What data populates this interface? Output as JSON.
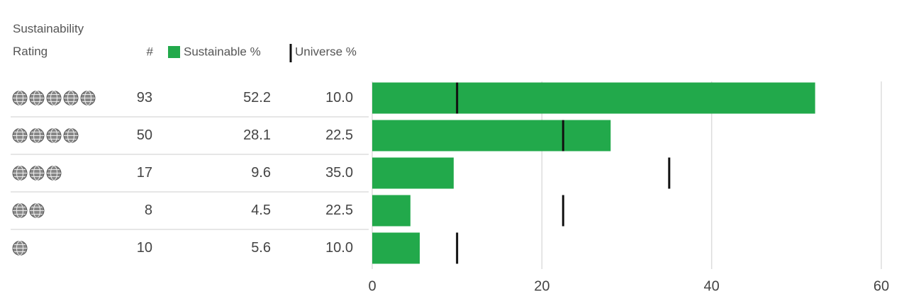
{
  "chart_data": {
    "type": "bar",
    "rating_header": "Sustainability Rating",
    "count_header": "#",
    "ratings": [
      5,
      4,
      3,
      2,
      1
    ],
    "counts": [
      93,
      50,
      17,
      8,
      10
    ],
    "series": [
      {
        "name": "Sustainable %",
        "color": "#22a94b",
        "values": [
          52.2,
          28.1,
          9.6,
          4.5,
          5.6
        ]
      },
      {
        "name": "Universe %",
        "color": "#111111",
        "values": [
          10.0,
          22.5,
          35.0,
          22.5,
          10.0
        ],
        "value_labels": [
          "10.0",
          "22.5",
          "35.0",
          "22.5",
          "10.0"
        ]
      }
    ],
    "xlim": [
      0,
      60
    ],
    "xticks": [
      0,
      20,
      40,
      60
    ],
    "grid": true
  }
}
